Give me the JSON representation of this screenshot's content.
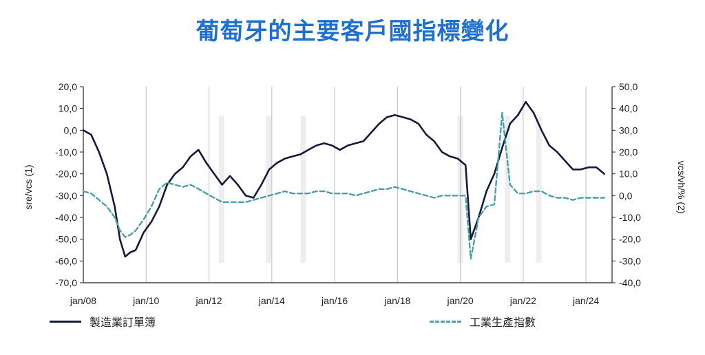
{
  "chart_data": {
    "type": "line",
    "title": "葡萄牙的主要客戶國指標變化",
    "x_ticks": [
      "jan/08",
      "jan/10",
      "jan/12",
      "jan/14",
      "jan/16",
      "jan/18",
      "jan/20",
      "jan/22",
      "jan/24"
    ],
    "y_left": {
      "label": "sre/vcs (1)",
      "lim": [
        -70,
        20
      ],
      "ticks": [
        "20,0",
        "10,0",
        "0,0",
        "-10,0",
        "-20,0",
        "-30,0",
        "-40,0",
        "-50,0",
        "-60,0",
        "-70,0"
      ]
    },
    "y_right": {
      "label": "vcs/vh/% (2)",
      "lim": [
        -40,
        50
      ],
      "ticks": [
        "50,0",
        "40,0",
        "30,0",
        "20,0",
        "10,0",
        "0,0",
        "-10,0",
        "-20,0",
        "-30,0",
        "-40,0"
      ]
    },
    "grid": "vertical lines at every other year",
    "legend_position": "bottom",
    "series": [
      {
        "name": "製造業訂單簿",
        "axis": "left",
        "color": "#141a3a",
        "style": "solid",
        "points": [
          [
            "2008-01",
            0
          ],
          [
            "2008-04",
            -2
          ],
          [
            "2008-07",
            -10
          ],
          [
            "2008-10",
            -20
          ],
          [
            "2009-01",
            -35
          ],
          [
            "2009-03",
            -50
          ],
          [
            "2009-05",
            -58
          ],
          [
            "2009-07",
            -56
          ],
          [
            "2009-09",
            -55
          ],
          [
            "2009-12",
            -47
          ],
          [
            "2010-03",
            -42
          ],
          [
            "2010-06",
            -35
          ],
          [
            "2010-09",
            -25
          ],
          [
            "2010-12",
            -20
          ],
          [
            "2011-03",
            -17
          ],
          [
            "2011-06",
            -12
          ],
          [
            "2011-09",
            -9
          ],
          [
            "2011-12",
            -15
          ],
          [
            "2012-03",
            -20
          ],
          [
            "2012-06",
            -25
          ],
          [
            "2012-09",
            -21
          ],
          [
            "2012-12",
            -25
          ],
          [
            "2013-03",
            -30
          ],
          [
            "2013-06",
            -31
          ],
          [
            "2013-09",
            -25
          ],
          [
            "2013-12",
            -18
          ],
          [
            "2014-03",
            -15
          ],
          [
            "2014-06",
            -13
          ],
          [
            "2014-09",
            -12
          ],
          [
            "2014-12",
            -11
          ],
          [
            "2015-03",
            -9
          ],
          [
            "2015-06",
            -7
          ],
          [
            "2015-09",
            -6
          ],
          [
            "2015-12",
            -7
          ],
          [
            "2016-03",
            -9
          ],
          [
            "2016-06",
            -7
          ],
          [
            "2016-09",
            -6
          ],
          [
            "2016-12",
            -5
          ],
          [
            "2017-03",
            -1
          ],
          [
            "2017-06",
            3
          ],
          [
            "2017-09",
            6
          ],
          [
            "2017-12",
            7
          ],
          [
            "2018-03",
            6
          ],
          [
            "2018-06",
            5
          ],
          [
            "2018-09",
            3
          ],
          [
            "2018-12",
            -2
          ],
          [
            "2019-03",
            -5
          ],
          [
            "2019-06",
            -10
          ],
          [
            "2019-09",
            -12
          ],
          [
            "2019-12",
            -13
          ],
          [
            "2020-03",
            -16
          ],
          [
            "2020-05",
            -50
          ],
          [
            "2020-08",
            -40
          ],
          [
            "2020-11",
            -28
          ],
          [
            "2021-02",
            -20
          ],
          [
            "2021-05",
            -8
          ],
          [
            "2021-08",
            3
          ],
          [
            "2021-11",
            7
          ],
          [
            "2022-02",
            13
          ],
          [
            "2022-05",
            8
          ],
          [
            "2022-08",
            0
          ],
          [
            "2022-11",
            -7
          ],
          [
            "2023-02",
            -10
          ],
          [
            "2023-05",
            -14
          ],
          [
            "2023-08",
            -18
          ],
          [
            "2023-11",
            -18
          ],
          [
            "2024-02",
            -17
          ],
          [
            "2024-05",
            -17
          ],
          [
            "2024-08",
            -20
          ]
        ]
      },
      {
        "name": "工業生產指數",
        "axis": "right",
        "color": "#4aa0a8",
        "style": "dashed",
        "points": [
          [
            "2008-01",
            2
          ],
          [
            "2008-04",
            1
          ],
          [
            "2008-07",
            -2
          ],
          [
            "2008-10",
            -5
          ],
          [
            "2009-01",
            -10
          ],
          [
            "2009-03",
            -16
          ],
          [
            "2009-05",
            -19
          ],
          [
            "2009-07",
            -18
          ],
          [
            "2009-09",
            -16
          ],
          [
            "2009-12",
            -11
          ],
          [
            "2010-03",
            -5
          ],
          [
            "2010-06",
            3
          ],
          [
            "2010-09",
            6
          ],
          [
            "2010-12",
            5
          ],
          [
            "2011-03",
            4
          ],
          [
            "2011-06",
            5
          ],
          [
            "2011-09",
            3
          ],
          [
            "2011-12",
            1
          ],
          [
            "2012-03",
            -1
          ],
          [
            "2012-06",
            -3
          ],
          [
            "2012-09",
            -3
          ],
          [
            "2012-12",
            -3
          ],
          [
            "2013-03",
            -3
          ],
          [
            "2013-06",
            -2
          ],
          [
            "2013-09",
            -1
          ],
          [
            "2013-12",
            0
          ],
          [
            "2014-03",
            1
          ],
          [
            "2014-06",
            2
          ],
          [
            "2014-09",
            1
          ],
          [
            "2014-12",
            1
          ],
          [
            "2015-03",
            1
          ],
          [
            "2015-06",
            2
          ],
          [
            "2015-09",
            2
          ],
          [
            "2015-12",
            1
          ],
          [
            "2016-03",
            1
          ],
          [
            "2016-06",
            1
          ],
          [
            "2016-09",
            0
          ],
          [
            "2016-12",
            1
          ],
          [
            "2017-03",
            2
          ],
          [
            "2017-06",
            3
          ],
          [
            "2017-09",
            3
          ],
          [
            "2017-12",
            4
          ],
          [
            "2018-03",
            3
          ],
          [
            "2018-06",
            2
          ],
          [
            "2018-09",
            1
          ],
          [
            "2018-12",
            0
          ],
          [
            "2019-03",
            -1
          ],
          [
            "2019-06",
            0
          ],
          [
            "2019-09",
            0
          ],
          [
            "2019-12",
            0
          ],
          [
            "2020-03",
            0
          ],
          [
            "2020-05",
            -29
          ],
          [
            "2020-08",
            -10
          ],
          [
            "2020-11",
            -5
          ],
          [
            "2021-02",
            -4
          ],
          [
            "2021-05",
            38
          ],
          [
            "2021-08",
            5
          ],
          [
            "2021-11",
            1
          ],
          [
            "2022-02",
            1
          ],
          [
            "2022-05",
            2
          ],
          [
            "2022-08",
            2
          ],
          [
            "2022-11",
            0
          ],
          [
            "2023-02",
            -1
          ],
          [
            "2023-05",
            -1
          ],
          [
            "2023-08",
            -2
          ],
          [
            "2023-11",
            -1
          ],
          [
            "2024-02",
            -1
          ],
          [
            "2024-05",
            -1
          ],
          [
            "2024-08",
            -1
          ]
        ]
      }
    ]
  }
}
